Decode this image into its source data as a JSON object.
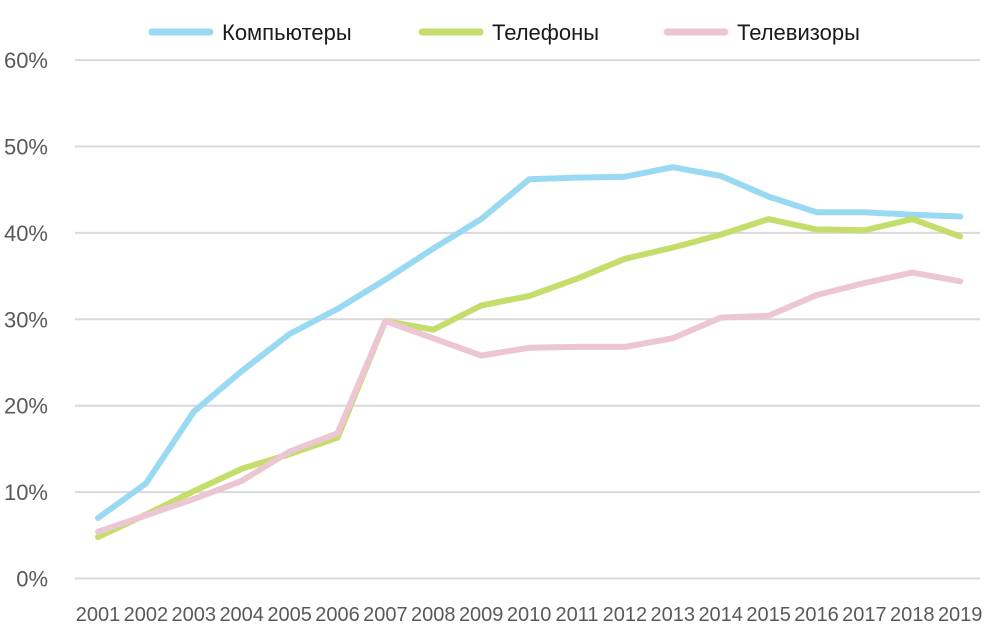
{
  "chart_data": {
    "type": "line",
    "title": "",
    "xlabel": "",
    "ylabel": "",
    "categories": [
      "2001",
      "2002",
      "2003",
      "2004",
      "2005",
      "2006",
      "2007",
      "2008",
      "2009",
      "2010",
      "2011",
      "2012",
      "2013",
      "2014",
      "2015",
      "2016",
      "2017",
      "2018",
      "2019"
    ],
    "y_ticks": [
      "0%",
      "10%",
      "20%",
      "30%",
      "40%",
      "50%",
      "60%"
    ],
    "ylim": [
      0,
      60
    ],
    "grid": true,
    "legend_position": "top",
    "series": [
      {
        "name": "Компьютеры",
        "color": "#9ad9f2",
        "values": [
          7.0,
          11.0,
          19.3,
          24.0,
          28.3,
          31.2,
          34.6,
          38.2,
          41.6,
          46.2,
          46.4,
          46.5,
          47.6,
          46.6,
          44.2,
          42.4,
          42.4,
          42.1,
          41.9
        ]
      },
      {
        "name": "Телефоны",
        "color": "#c4dd6b",
        "values": [
          4.8,
          7.4,
          10.1,
          12.7,
          14.4,
          16.3,
          29.8,
          28.8,
          31.6,
          32.7,
          34.7,
          37.0,
          38.3,
          39.8,
          41.6,
          40.4,
          40.3,
          41.6,
          39.6
        ]
      },
      {
        "name": "Телевизоры",
        "color": "#ecc6d3",
        "values": [
          5.4,
          7.3,
          9.2,
          11.3,
          14.7,
          16.8,
          29.8,
          27.8,
          25.8,
          26.7,
          26.8,
          26.8,
          27.8,
          30.2,
          30.4,
          32.8,
          34.2,
          35.4,
          34.4
        ]
      }
    ]
  }
}
